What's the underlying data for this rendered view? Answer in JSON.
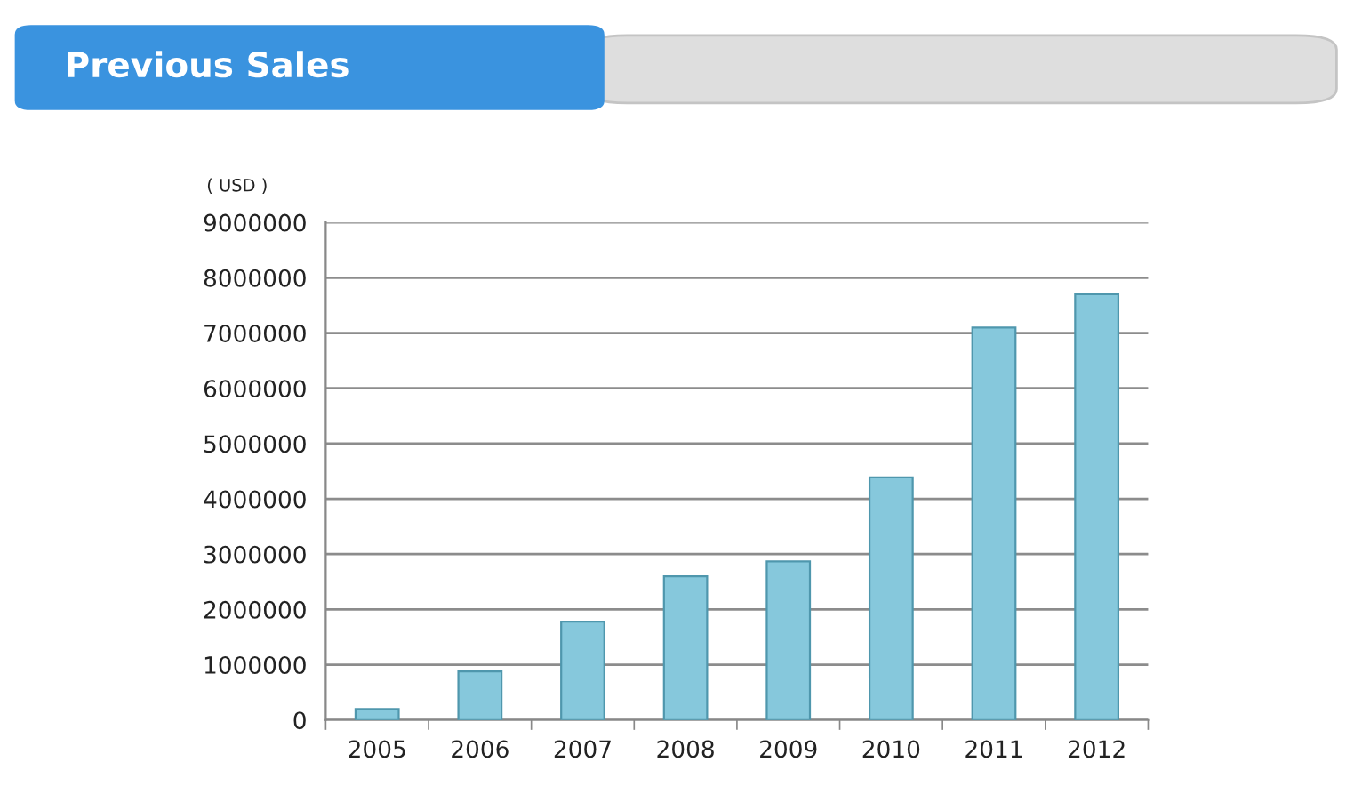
{
  "chart_data": {
    "type": "bar",
    "title": "Previous Sales",
    "ylabel": "( USD )",
    "categories": [
      "2005",
      "2006",
      "2007",
      "2008",
      "2009",
      "2010",
      "2011",
      "2012"
    ],
    "values": [
      200000,
      880000,
      1780000,
      2600000,
      2870000,
      4390000,
      7100000,
      7700000
    ],
    "color": "#86c8dc",
    "ylim": [
      0,
      9000000
    ],
    "yticks": [
      0,
      1000000,
      2000000,
      3000000,
      4000000,
      5000000,
      6000000,
      7000000,
      8000000,
      9000000
    ],
    "grid": "y",
    "legend": false
  }
}
